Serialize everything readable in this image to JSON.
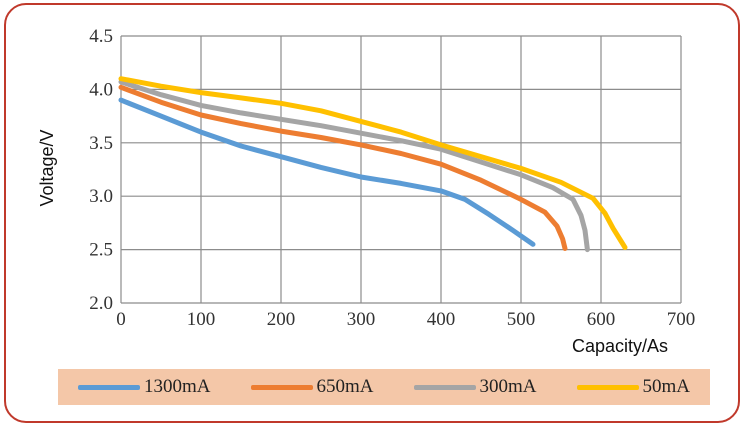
{
  "chart_data": {
    "type": "line",
    "title": "",
    "xlabel": "Capacity/As",
    "ylabel": "Voltage/V",
    "xlim": [
      0,
      700
    ],
    "ylim": [
      2.0,
      4.5
    ],
    "x_ticks": [
      "0",
      "100",
      "200",
      "300",
      "400",
      "500",
      "600",
      "700"
    ],
    "y_ticks": [
      "2.0",
      "2.5",
      "3.0",
      "3.5",
      "4.0",
      "4.5"
    ],
    "grid": true,
    "legend_position": "bottom",
    "series": [
      {
        "name": "1300mA",
        "color": "#5b9bd5",
        "points": [
          [
            0,
            3.9
          ],
          [
            50,
            3.75
          ],
          [
            100,
            3.6
          ],
          [
            150,
            3.47
          ],
          [
            200,
            3.37
          ],
          [
            250,
            3.27
          ],
          [
            300,
            3.18
          ],
          [
            350,
            3.12
          ],
          [
            400,
            3.05
          ],
          [
            430,
            2.97
          ],
          [
            460,
            2.83
          ],
          [
            490,
            2.68
          ],
          [
            515,
            2.55
          ]
        ]
      },
      {
        "name": "650mA",
        "color": "#ed7d31",
        "points": [
          [
            0,
            4.02
          ],
          [
            50,
            3.88
          ],
          [
            100,
            3.76
          ],
          [
            150,
            3.68
          ],
          [
            200,
            3.61
          ],
          [
            250,
            3.55
          ],
          [
            300,
            3.48
          ],
          [
            350,
            3.4
          ],
          [
            400,
            3.3
          ],
          [
            450,
            3.15
          ],
          [
            500,
            2.97
          ],
          [
            530,
            2.85
          ],
          [
            545,
            2.72
          ],
          [
            552,
            2.6
          ],
          [
            555,
            2.51
          ]
        ]
      },
      {
        "name": "300mA",
        "color": "#a5a5a5",
        "points": [
          [
            0,
            4.07
          ],
          [
            50,
            3.95
          ],
          [
            100,
            3.85
          ],
          [
            150,
            3.78
          ],
          [
            200,
            3.72
          ],
          [
            250,
            3.66
          ],
          [
            300,
            3.59
          ],
          [
            350,
            3.52
          ],
          [
            400,
            3.44
          ],
          [
            450,
            3.32
          ],
          [
            500,
            3.2
          ],
          [
            540,
            3.08
          ],
          [
            565,
            2.97
          ],
          [
            575,
            2.82
          ],
          [
            580,
            2.68
          ],
          [
            583,
            2.5
          ]
        ]
      },
      {
        "name": "50mA",
        "color": "#ffc000",
        "points": [
          [
            0,
            4.1
          ],
          [
            50,
            4.03
          ],
          [
            100,
            3.97
          ],
          [
            150,
            3.92
          ],
          [
            200,
            3.87
          ],
          [
            250,
            3.8
          ],
          [
            300,
            3.7
          ],
          [
            350,
            3.6
          ],
          [
            400,
            3.48
          ],
          [
            450,
            3.37
          ],
          [
            500,
            3.26
          ],
          [
            550,
            3.13
          ],
          [
            590,
            2.98
          ],
          [
            605,
            2.84
          ],
          [
            615,
            2.7
          ],
          [
            630,
            2.52
          ]
        ]
      }
    ]
  }
}
